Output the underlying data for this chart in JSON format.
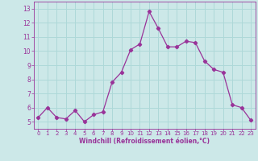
{
  "x": [
    0,
    1,
    2,
    3,
    4,
    5,
    6,
    7,
    8,
    9,
    10,
    11,
    12,
    13,
    14,
    15,
    16,
    17,
    18,
    19,
    20,
    21,
    22,
    23
  ],
  "y": [
    5.3,
    6.0,
    5.3,
    5.2,
    5.8,
    5.0,
    5.5,
    5.7,
    7.8,
    8.5,
    10.1,
    10.5,
    12.8,
    11.6,
    10.3,
    10.3,
    10.7,
    10.6,
    9.3,
    8.7,
    8.5,
    6.2,
    6.0,
    5.1
  ],
  "line_color": "#993399",
  "marker": "D",
  "marker_size": 2.2,
  "xlabel": "Windchill (Refroidissement éolien,°C)",
  "xlim": [
    -0.5,
    23.5
  ],
  "ylim": [
    4.5,
    13.5
  ],
  "yticks": [
    5,
    6,
    7,
    8,
    9,
    10,
    11,
    12,
    13
  ],
  "xticks": [
    0,
    1,
    2,
    3,
    4,
    5,
    6,
    7,
    8,
    9,
    10,
    11,
    12,
    13,
    14,
    15,
    16,
    17,
    18,
    19,
    20,
    21,
    22,
    23
  ],
  "bg_color": "#cce8e8",
  "grid_color": "#aed8d8",
  "tick_color": "#993399",
  "label_color": "#993399",
  "axis_color": "#993399",
  "xlabel_fontsize": 5.5,
  "xtick_fontsize": 5.0,
  "ytick_fontsize": 5.5
}
